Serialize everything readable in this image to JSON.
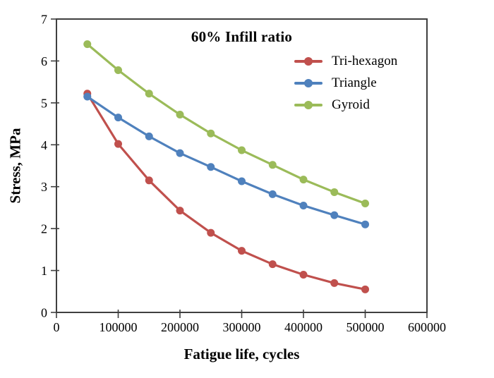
{
  "chart_data": {
    "type": "line",
    "title": "60% Infill ratio",
    "xlabel": "Fatigue life, cycles",
    "ylabel": "Stress, MPa",
    "xlim": [
      0,
      600000
    ],
    "ylim": [
      0,
      7
    ],
    "xticks": [
      0,
      100000,
      200000,
      300000,
      400000,
      500000,
      600000
    ],
    "yticks": [
      0,
      1,
      2,
      3,
      4,
      5,
      6,
      7
    ],
    "grid": false,
    "legend_position": "upper-right-inside",
    "frame_color": "#3F3F3F",
    "x": [
      50000,
      100000,
      150000,
      200000,
      250000,
      300000,
      350000,
      400000,
      450000,
      500000
    ],
    "series": [
      {
        "name": "Tri-hexagon",
        "color": "#C0504D",
        "values": [
          5.22,
          4.02,
          3.15,
          2.43,
          1.9,
          1.47,
          1.15,
          0.9,
          0.7,
          0.55
        ]
      },
      {
        "name": "Triangle",
        "color": "#4F81BD",
        "values": [
          5.15,
          4.65,
          4.2,
          3.8,
          3.47,
          3.13,
          2.82,
          2.55,
          2.32,
          2.1
        ]
      },
      {
        "name": "Gyroid",
        "color": "#9BBB59",
        "values": [
          6.4,
          5.78,
          5.22,
          4.72,
          4.27,
          3.87,
          3.52,
          3.17,
          2.87,
          2.6
        ]
      }
    ]
  }
}
